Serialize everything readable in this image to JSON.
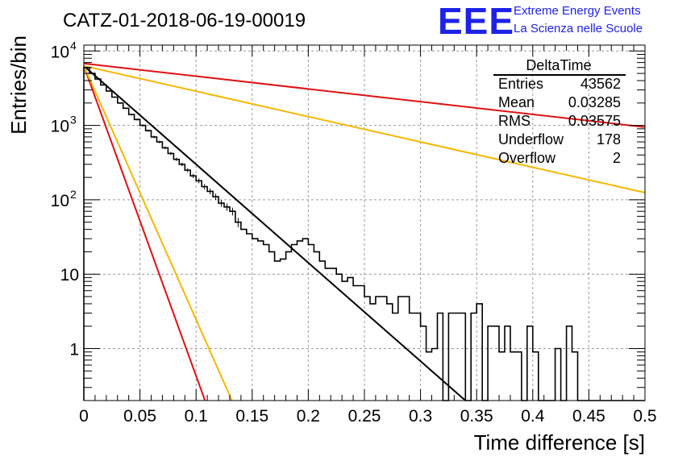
{
  "title": "CATZ-01-2018-06-19-00019",
  "logo": {
    "mark": "EEE",
    "line1": "Extreme Energy Events",
    "line2": "La Scienza nelle Scuole",
    "color": "#1d22e8"
  },
  "stats": {
    "name": "DeltaTime",
    "rows": [
      {
        "label": "Entries",
        "value": "43562"
      },
      {
        "label": "Mean",
        "value": "0.03285"
      },
      {
        "label": "RMS",
        "value": "0.03575"
      },
      {
        "label": "Underflow",
        "value": "178"
      },
      {
        "label": "Overflow",
        "value": "2"
      }
    ]
  },
  "chart_data": {
    "type": "line",
    "histogram_type": "step",
    "xlabel": "Time difference [s]",
    "ylabel": "Entries/bin",
    "xlim": [
      0,
      0.5
    ],
    "ylim": [
      0.2,
      12000
    ],
    "yscale": "log",
    "grid": true,
    "x_ticks": [
      "0",
      "0.05",
      "0.1",
      "0.15",
      "0.2",
      "0.25",
      "0.3",
      "0.35",
      "0.4",
      "0.45",
      "0.5"
    ],
    "y_ticks": [
      {
        "value": 1,
        "label": "1",
        "exponent": ""
      },
      {
        "value": 10,
        "label": "10",
        "exponent": ""
      },
      {
        "value": 100,
        "label": "10",
        "exponent": "2"
      },
      {
        "value": 1000,
        "label": "10",
        "exponent": "3"
      },
      {
        "value": 10000,
        "label": "10",
        "exponent": "4"
      }
    ],
    "bin_width": 0.005,
    "histogram": [
      6000,
      5000,
      4200,
      3500,
      2900,
      2400,
      2000,
      1700,
      1400,
      1200,
      1000,
      850,
      700,
      600,
      500,
      420,
      350,
      300,
      250,
      210,
      180,
      150,
      130,
      110,
      90,
      80,
      70,
      50,
      40,
      35,
      30,
      28,
      25,
      20,
      15,
      16,
      20,
      25,
      28,
      30,
      25,
      20,
      15,
      12,
      12,
      10,
      8,
      9,
      7,
      7,
      5,
      4,
      5,
      5,
      4,
      3,
      5,
      5,
      3,
      3,
      2,
      0.9,
      1,
      3,
      0.2,
      3,
      3,
      3,
      0.2,
      3,
      4,
      0.2,
      2,
      2,
      0.9,
      2,
      0.9,
      0.9,
      0.2,
      2,
      0.9,
      0.2,
      0.2,
      0.2,
      1,
      0.2,
      2,
      0.9,
      0.2,
      0.2,
      0.2,
      0.2,
      0.2,
      0.2,
      0.2,
      0.2,
      0.2,
      0.2,
      0.2,
      0.2
    ],
    "fits": [
      {
        "color": "#000000",
        "points": [
          [
            0,
            6300
          ],
          [
            0.34,
            0.2
          ]
        ]
      },
      {
        "color": "#e01010",
        "points": [
          [
            0,
            6800
          ],
          [
            0.5,
            950
          ]
        ]
      },
      {
        "color": "#f5b800",
        "points": [
          [
            0,
            6300
          ],
          [
            0.5,
            125
          ]
        ]
      },
      {
        "color": "#e01010",
        "points": [
          [
            0,
            6300
          ],
          [
            0.108,
            0.2
          ]
        ]
      },
      {
        "color": "#f5b800",
        "points": [
          [
            0,
            6300
          ],
          [
            0.132,
            0.2
          ]
        ]
      }
    ]
  }
}
